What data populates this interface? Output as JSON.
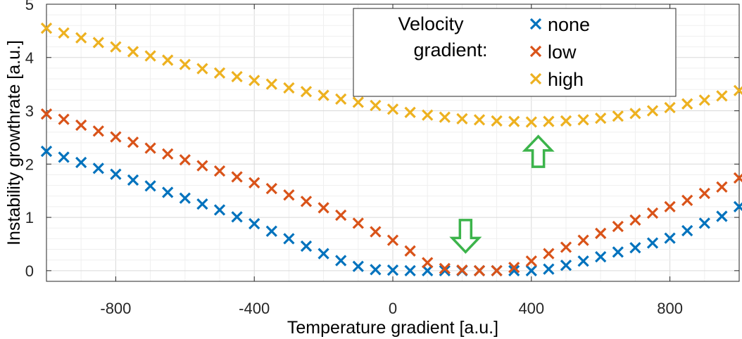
{
  "chart_data": {
    "type": "scatter",
    "title": "",
    "xlabel": "Temperature gradient [a.u.]",
    "ylabel": "Instability growthrate [a.u.]",
    "xlim": [
      -1000,
      1000
    ],
    "ylim": [
      -0.2,
      5
    ],
    "xticks": [
      -800,
      -400,
      0,
      400,
      800
    ],
    "yticks": [
      0,
      1,
      2,
      3,
      4,
      5
    ],
    "grid": true,
    "legend": {
      "title_line1": "Velocity",
      "title_line2": "gradient:",
      "position": "top-right"
    },
    "marker": "x",
    "x": [
      -1000,
      -950,
      -900,
      -850,
      -800,
      -750,
      -700,
      -650,
      -600,
      -550,
      -500,
      -450,
      -400,
      -350,
      -300,
      -250,
      -200,
      -150,
      -100,
      -50,
      0,
      50,
      100,
      150,
      200,
      250,
      300,
      350,
      400,
      450,
      500,
      550,
      600,
      650,
      700,
      750,
      800,
      850,
      900,
      950,
      1000
    ],
    "series": [
      {
        "name": "none",
        "color": "#0072BD",
        "values": [
          2.24,
          2.13,
          2.03,
          1.92,
          1.81,
          1.7,
          1.59,
          1.47,
          1.36,
          1.25,
          1.14,
          1.01,
          0.88,
          0.74,
          0.6,
          0.46,
          0.32,
          0.19,
          0.08,
          0.02,
          0.01,
          0.0,
          0.0,
          0.0,
          0.0,
          0.0,
          0.0,
          0.0,
          0.0,
          0.03,
          0.1,
          0.18,
          0.26,
          0.35,
          0.43,
          0.52,
          0.61,
          0.75,
          0.89,
          1.02,
          1.2
        ]
      },
      {
        "name": "low",
        "color": "#D95319",
        "values": [
          2.94,
          2.84,
          2.73,
          2.62,
          2.51,
          2.41,
          2.3,
          2.19,
          2.08,
          1.97,
          1.87,
          1.76,
          1.65,
          1.54,
          1.42,
          1.3,
          1.18,
          1.04,
          0.89,
          0.73,
          0.57,
          0.37,
          0.15,
          0.04,
          0.01,
          0.0,
          0.0,
          0.06,
          0.18,
          0.32,
          0.44,
          0.57,
          0.7,
          0.83,
          0.95,
          1.08,
          1.2,
          1.32,
          1.45,
          1.57,
          1.74
        ]
      },
      {
        "name": "high",
        "color": "#EDB120",
        "values": [
          4.55,
          4.46,
          4.37,
          4.28,
          4.2,
          4.11,
          4.03,
          3.95,
          3.87,
          3.79,
          3.71,
          3.64,
          3.57,
          3.5,
          3.43,
          3.36,
          3.29,
          3.22,
          3.16,
          3.1,
          3.03,
          2.97,
          2.92,
          2.88,
          2.85,
          2.83,
          2.81,
          2.8,
          2.79,
          2.8,
          2.81,
          2.83,
          2.86,
          2.9,
          2.95,
          3.0,
          3.06,
          3.13,
          3.2,
          3.28,
          3.38
        ]
      }
    ],
    "annotations": [
      {
        "type": "arrow-up",
        "color": "#3CB44B",
        "x": 420,
        "y_tip": 2.52,
        "y_base": 1.95
      },
      {
        "type": "arrow-down",
        "color": "#3CB44B",
        "x": 210,
        "y_top": 0.95,
        "y_tip": 0.35
      }
    ]
  }
}
